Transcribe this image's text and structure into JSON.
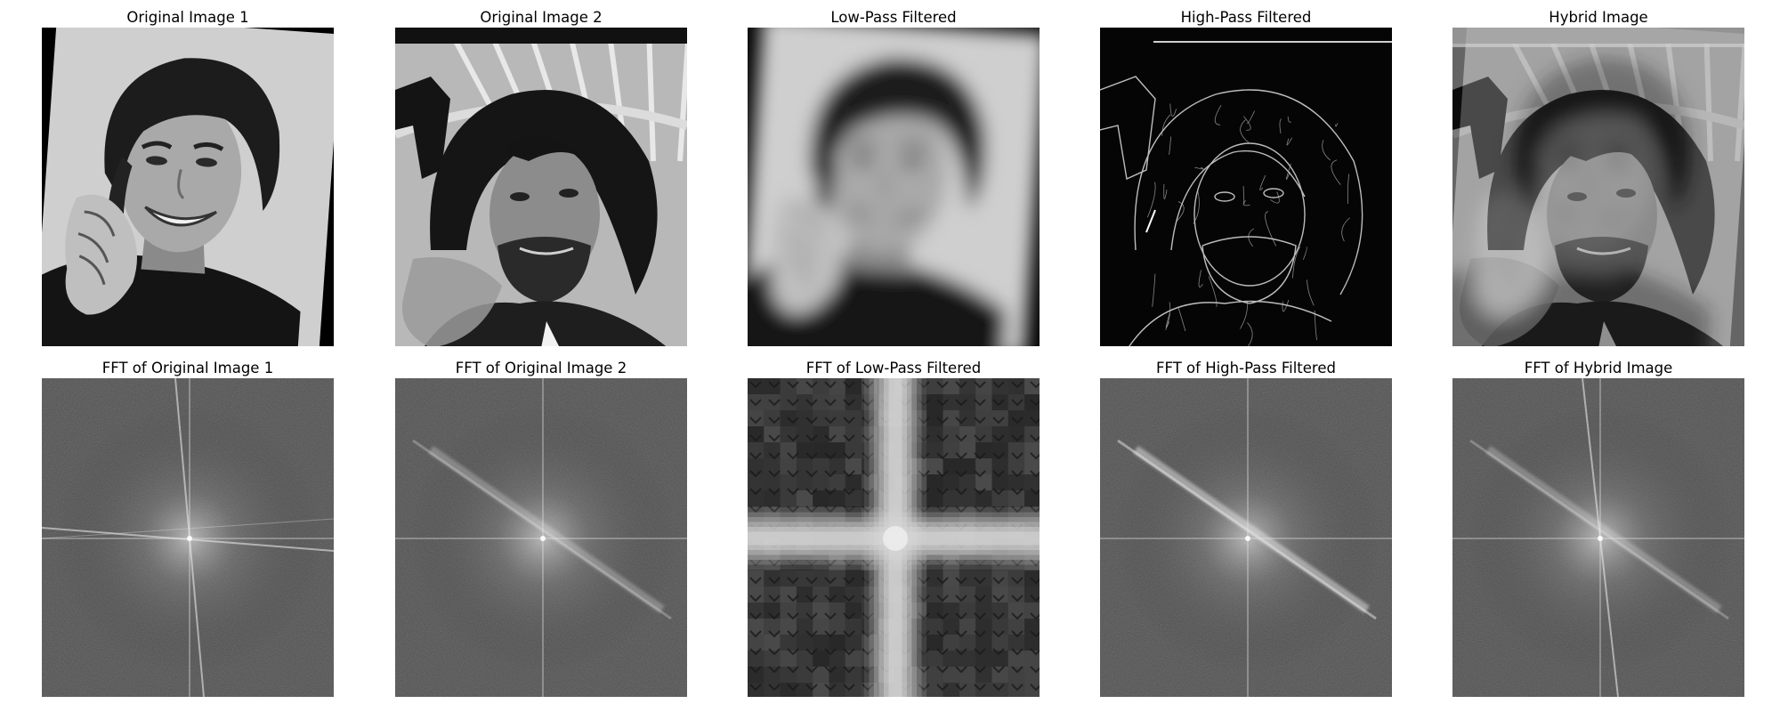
{
  "figure": {
    "panels": [
      {
        "title": "Original Image 1",
        "kind": "portrait-rotated",
        "subject": "smiling-young-man"
      },
      {
        "title": "Original Image 2",
        "kind": "portrait",
        "subject": "bearded-man-with-gun"
      },
      {
        "title": "Low-Pass Filtered",
        "kind": "blurred-portrait-rotated",
        "subject": "smiling-young-man"
      },
      {
        "title": "High-Pass Filtered",
        "kind": "edge-map",
        "subject": "bearded-man-with-gun"
      },
      {
        "title": "Hybrid Image",
        "kind": "hybrid",
        "subject": "hybrid-face"
      },
      {
        "title": "FFT of Original Image 1",
        "kind": "fft",
        "variant": "tilted-cross"
      },
      {
        "title": "FFT of Original Image 2",
        "kind": "fft",
        "variant": "diagonal-streak"
      },
      {
        "title": "FFT of Low-Pass Filtered",
        "kind": "fft-lowpass",
        "variant": "blocky-cross"
      },
      {
        "title": "FFT of High-Pass Filtered",
        "kind": "fft",
        "variant": "bright-diagonal"
      },
      {
        "title": "FFT of Hybrid Image",
        "kind": "fft",
        "variant": "tilted-diagonal"
      }
    ],
    "colormap": "gray",
    "grid": false,
    "axes": "off"
  }
}
